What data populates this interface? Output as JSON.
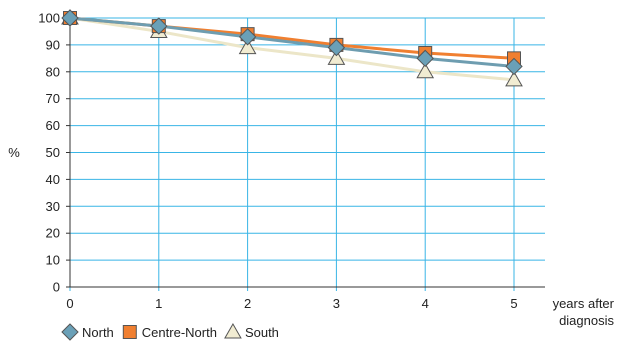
{
  "chart_data": {
    "type": "line",
    "x": [
      0,
      1,
      2,
      3,
      4,
      5
    ],
    "xlabel": [
      "years after",
      "diagnosis"
    ],
    "ylabel": "%",
    "ylim": [
      0,
      100
    ],
    "yticks": [
      0,
      10,
      20,
      30,
      40,
      50,
      60,
      70,
      80,
      90,
      100
    ],
    "xticks": [
      0,
      1,
      2,
      3,
      4,
      5
    ],
    "grid": true,
    "legend_position": "bottom-left",
    "series": [
      {
        "name": "North",
        "marker": "diamond",
        "line_color": "#6e9db0",
        "marker_color": "#6aa0b7",
        "values": [
          100,
          97,
          93,
          89,
          85,
          82
        ]
      },
      {
        "name": "Centre-North",
        "marker": "square",
        "line_color": "#f07f30",
        "marker_color": "#f07f30",
        "values": [
          100,
          97,
          94,
          90,
          87,
          85
        ]
      },
      {
        "name": "South",
        "marker": "triangle",
        "line_color": "#ece6c8",
        "marker_color": "#f1ecd2",
        "values": [
          100,
          95,
          89,
          85,
          80,
          77
        ]
      }
    ]
  },
  "colors": {
    "grid": "#39b5e6",
    "axis": "#333333",
    "marker_stroke": "#555555"
  }
}
